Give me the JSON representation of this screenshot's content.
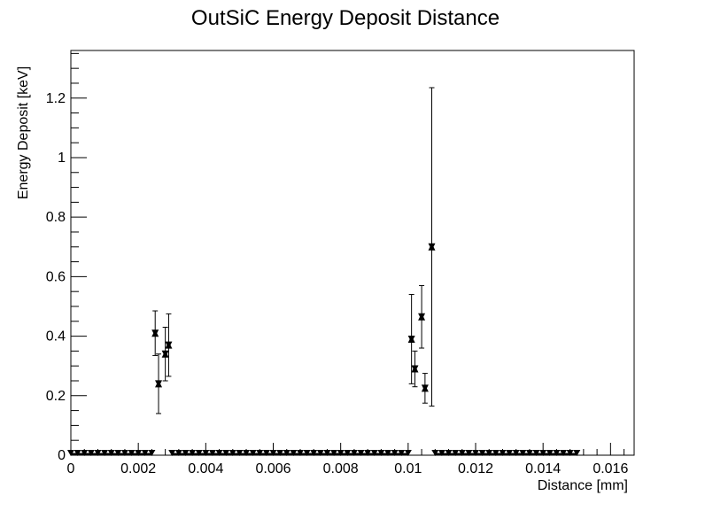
{
  "chart_data": {
    "type": "scatter",
    "title": "OutSiC Energy Deposit Distance",
    "xlabel": "Distance [mm]",
    "ylabel": "Energy Deposit [keV]",
    "xlim": [
      0,
      0.0167
    ],
    "ylim": [
      0,
      1.36
    ],
    "x_ticks": [
      0,
      0.002,
      0.004,
      0.006,
      0.008,
      0.01,
      0.012,
      0.014,
      0.016
    ],
    "x_tick_labels": [
      "0",
      "0.002",
      "0.004",
      "0.006",
      "0.008",
      "0.01",
      "0.012",
      "0.014",
      "0.016"
    ],
    "y_ticks": [
      0,
      0.2,
      0.4,
      0.6,
      0.8,
      1.0,
      1.2
    ],
    "y_tick_labels": [
      "0",
      "0.2",
      "0.4",
      "0.6",
      "0.8",
      "1",
      "1.2"
    ],
    "marker_color": "#000000",
    "zero_bins": {
      "bin_width": 0.0002,
      "ranges": [
        [
          0,
          0.0024
        ],
        [
          0.003,
          0.01
        ],
        [
          0.0108,
          0.015
        ]
      ]
    },
    "points": [
      {
        "x": 0.0025,
        "y": 0.41,
        "err": 0.075
      },
      {
        "x": 0.0026,
        "y": 0.24,
        "err": 0.1
      },
      {
        "x": 0.0028,
        "y": 0.34,
        "err": 0.09
      },
      {
        "x": 0.0029,
        "y": 0.37,
        "err": 0.105
      },
      {
        "x": 0.0101,
        "y": 0.39,
        "err": 0.15
      },
      {
        "x": 0.0102,
        "y": 0.29,
        "err": 0.06
      },
      {
        "x": 0.0104,
        "y": 0.465,
        "err": 0.105
      },
      {
        "x": 0.0105,
        "y": 0.225,
        "err": 0.05
      },
      {
        "x": 0.0107,
        "y": 0.7,
        "err": 0.535
      }
    ]
  }
}
